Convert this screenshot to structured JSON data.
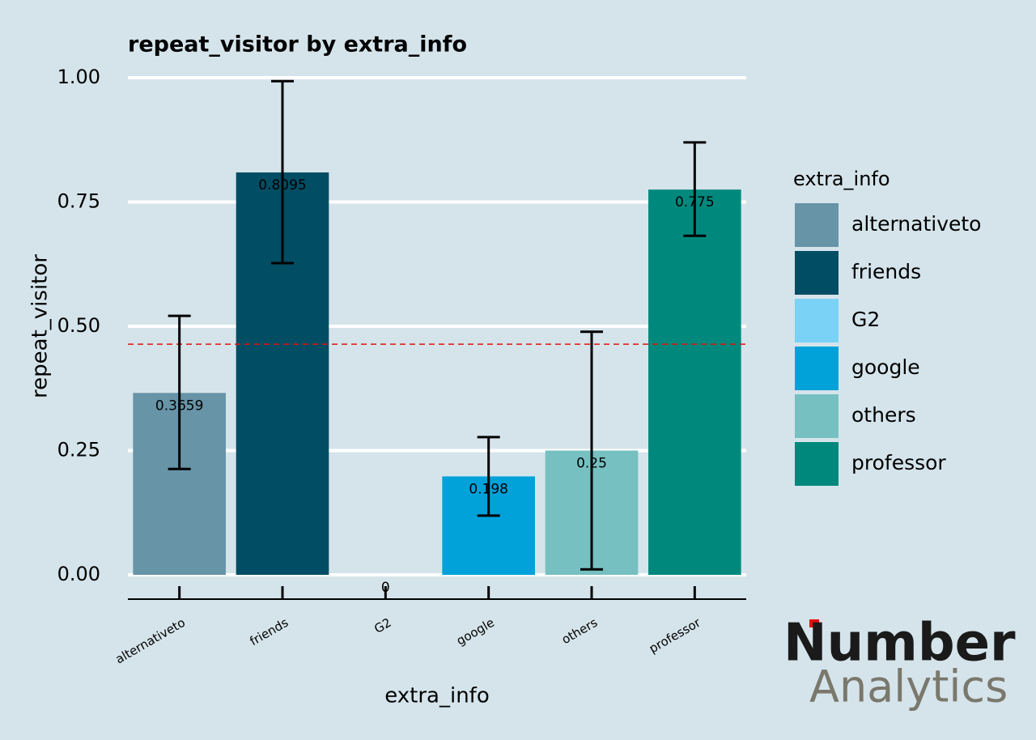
{
  "chart_data": {
    "type": "bar",
    "title": "repeat_visitor by extra_info",
    "x_label": "extra_info",
    "y_label": "repeat_visitor",
    "legend_title": "extra_info",
    "categories": [
      "alternativeto",
      "friends",
      "G2",
      "google",
      "others",
      "professor"
    ],
    "values": [
      0.3659,
      0.8095,
      0,
      0.198,
      0.25,
      0.775
    ],
    "colors": [
      "#6794a7",
      "#014d64",
      "#7ad2f6",
      "#01a2d9",
      "#76c0c1",
      "#00887d"
    ],
    "error_lower": [
      0.213,
      0.627,
      null,
      0.119,
      0.011,
      0.682
    ],
    "error_upper": [
      0.521,
      0.993,
      null,
      0.277,
      0.489,
      0.87
    ],
    "reference_line": 0.464,
    "reference_color": "#e3120b",
    "ylim": [
      0,
      1
    ],
    "yticks": [
      {
        "value": 0,
        "label": "0.00"
      },
      0.25,
      {
        "value": 0.5,
        "label": "0.50"
      },
      0.75,
      {
        "value": 1,
        "label": "1.00"
      }
    ],
    "grid": true
  },
  "logo": {
    "line1": "Number",
    "line2": "Analytics"
  }
}
